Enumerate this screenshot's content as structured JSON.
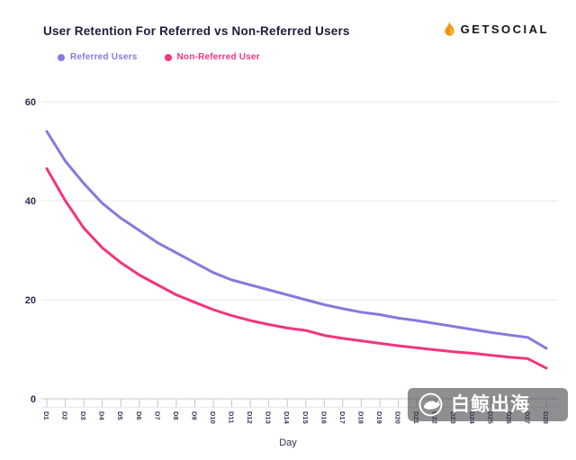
{
  "header": {
    "title": "User Retention For Referred vs Non-Referred Users",
    "brand_name": "GETSOCIAL"
  },
  "watermark": {
    "text": "白鲸出海"
  },
  "chart_data": {
    "type": "line",
    "title": "User Retention For Referred vs Non-Referred Users",
    "xlabel": "Day",
    "ylabel": "",
    "x": [
      "D1",
      "D2",
      "D3",
      "D4",
      "D5",
      "D6",
      "D7",
      "D8",
      "D9",
      "D10",
      "D11",
      "D12",
      "D13",
      "D14",
      "D15",
      "D16",
      "D17",
      "D18",
      "D19",
      "D20",
      "D21",
      "D22",
      "D23",
      "D24",
      "D25",
      "D26",
      "D27",
      "D28"
    ],
    "yticks": [
      0,
      20,
      40,
      60
    ],
    "ylim": [
      0,
      60
    ],
    "grid": true,
    "legend_position": "top-left",
    "series": [
      {
        "name": "Referred Users",
        "color": "#8b77dd",
        "values": [
          54,
          48,
          43.5,
          39.5,
          36.5,
          34,
          31.5,
          29.5,
          27.5,
          25.5,
          24,
          23,
          22,
          21,
          20,
          19,
          18.2,
          17.5,
          17,
          16.3,
          15.8,
          15.2,
          14.6,
          14,
          13.4,
          12.9,
          12.4,
          10.2
        ]
      },
      {
        "name": "Non-Referred User",
        "color": "#f2357d",
        "values": [
          46.5,
          40,
          34.5,
          30.5,
          27.5,
          25,
          23,
          21,
          19.5,
          18,
          16.8,
          15.8,
          15,
          14.3,
          13.8,
          12.8,
          12.2,
          11.7,
          11.2,
          10.7,
          10.3,
          9.9,
          9.5,
          9.2,
          8.8,
          8.4,
          8.1,
          6.2
        ]
      }
    ],
    "colors": {
      "grid": "#e8e8f1",
      "axis": "#c8c8d6",
      "tick_label": "#2b2b52"
    }
  }
}
